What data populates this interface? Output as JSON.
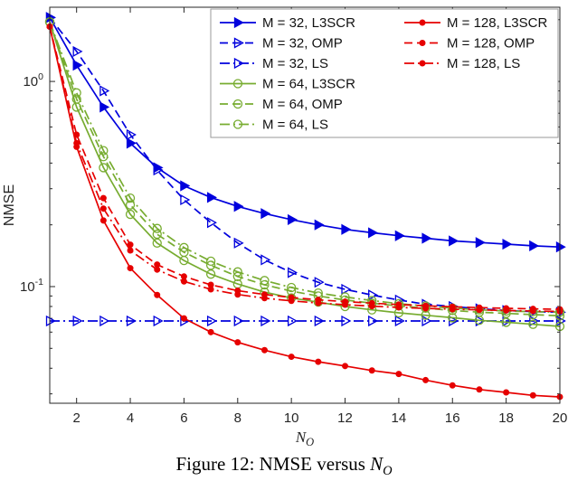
{
  "figure": {
    "caption_prefix": "Figure 12: NMSE versus",
    "caption_var": "N",
    "caption_sub": "O"
  },
  "chart_data": {
    "type": "line",
    "title": "",
    "xlabel": {
      "var": "N",
      "sub": "O"
    },
    "ylabel": "NMSE",
    "xscale": "linear",
    "yscale": "log",
    "xlim": [
      1,
      20
    ],
    "ylim": [
      0.027,
      2.3
    ],
    "grid": false,
    "x_ticks": [
      2,
      4,
      6,
      8,
      10,
      12,
      14,
      16,
      18,
      20
    ],
    "y_ticks": [
      {
        "value": 1,
        "base": "10",
        "exp": "0"
      },
      {
        "value": 0.1,
        "base": "10",
        "exp": "-1"
      }
    ],
    "legend": {
      "position": "top-right",
      "columns": 2,
      "col1_rows": 6
    },
    "x": [
      1,
      2,
      3,
      4,
      5,
      6,
      7,
      8,
      9,
      10,
      11,
      12,
      13,
      14,
      15,
      16,
      17,
      18,
      19,
      20
    ],
    "series": [
      {
        "name": "M = 32, L3SCR",
        "color": "#0000dd",
        "line": "solid",
        "marker": "triangle-right",
        "marker_fill": true,
        "values": [
          2.05,
          1.2,
          0.75,
          0.5,
          0.38,
          0.31,
          0.272,
          0.246,
          0.227,
          0.212,
          0.2,
          0.19,
          0.183,
          0.177,
          0.172,
          0.167,
          0.164,
          0.161,
          0.158,
          0.156
        ]
      },
      {
        "name": "M = 32, OMP",
        "color": "#0000dd",
        "line": "dashed",
        "marker": "triangle-right",
        "marker_fill": false,
        "values": [
          2.05,
          1.4,
          0.9,
          0.55,
          0.37,
          0.265,
          0.205,
          0.163,
          0.135,
          0.117,
          0.105,
          0.097,
          0.091,
          0.086,
          0.082,
          0.08,
          0.078,
          0.0765,
          0.0755,
          0.075
        ]
      },
      {
        "name": "M = 32, LS",
        "color": "#0000dd",
        "line": "dashdot",
        "marker": "triangle-right",
        "marker_fill": false,
        "values": [
          0.068,
          0.068,
          0.068,
          0.068,
          0.068,
          0.068,
          0.068,
          0.068,
          0.068,
          0.068,
          0.068,
          0.068,
          0.068,
          0.068,
          0.068,
          0.068,
          0.068,
          0.068,
          0.068,
          0.068
        ]
      },
      {
        "name": "M = 64, L3SCR",
        "color": "#77ac30",
        "line": "solid",
        "marker": "circle",
        "marker_fill": false,
        "values": [
          1.95,
          0.75,
          0.38,
          0.225,
          0.163,
          0.134,
          0.115,
          0.103,
          0.094,
          0.088,
          0.084,
          0.08,
          0.077,
          0.0745,
          0.0725,
          0.0705,
          0.0685,
          0.067,
          0.0655,
          0.064
        ]
      },
      {
        "name": "M = 64, OMP",
        "color": "#77ac30",
        "line": "dashed",
        "marker": "circle",
        "marker_fill": false,
        "values": [
          1.95,
          0.82,
          0.43,
          0.25,
          0.18,
          0.147,
          0.127,
          0.112,
          0.102,
          0.095,
          0.09,
          0.086,
          0.083,
          0.0805,
          0.0785,
          0.0765,
          0.075,
          0.074,
          0.073,
          0.072
        ]
      },
      {
        "name": "M = 64, LS",
        "color": "#77ac30",
        "line": "dashdot",
        "marker": "circle",
        "marker_fill": false,
        "values": [
          1.95,
          0.88,
          0.46,
          0.27,
          0.192,
          0.155,
          0.133,
          0.118,
          0.107,
          0.099,
          0.093,
          0.089,
          0.0855,
          0.0825,
          0.0805,
          0.0785,
          0.077,
          0.076,
          0.0755,
          0.075
        ]
      },
      {
        "name": "M = 128, L3SCR",
        "color": "#e60000",
        "line": "solid",
        "marker": "dot",
        "marker_fill": true,
        "values": [
          1.85,
          0.48,
          0.21,
          0.123,
          0.091,
          0.07,
          0.06,
          0.0535,
          0.049,
          0.0455,
          0.043,
          0.041,
          0.039,
          0.0375,
          0.035,
          0.033,
          0.0315,
          0.0305,
          0.0295,
          0.029
        ]
      },
      {
        "name": "M = 128, OMP",
        "color": "#e60000",
        "line": "dashed",
        "marker": "dot",
        "marker_fill": true,
        "values": [
          1.85,
          0.55,
          0.27,
          0.16,
          0.128,
          0.112,
          0.102,
          0.0955,
          0.0915,
          0.0885,
          0.0862,
          0.0845,
          0.083,
          0.0817,
          0.0806,
          0.0797,
          0.079,
          0.0784,
          0.0779,
          0.0775
        ]
      },
      {
        "name": "M = 128, LS",
        "color": "#e60000",
        "line": "dashdot",
        "marker": "dot",
        "marker_fill": true,
        "values": [
          1.85,
          0.5,
          0.24,
          0.15,
          0.121,
          0.106,
          0.097,
          0.0915,
          0.0878,
          0.0852,
          0.0832,
          0.0816,
          0.0803,
          0.0792,
          0.0783,
          0.0776,
          0.077,
          0.0765,
          0.076,
          0.0757
        ]
      }
    ]
  }
}
